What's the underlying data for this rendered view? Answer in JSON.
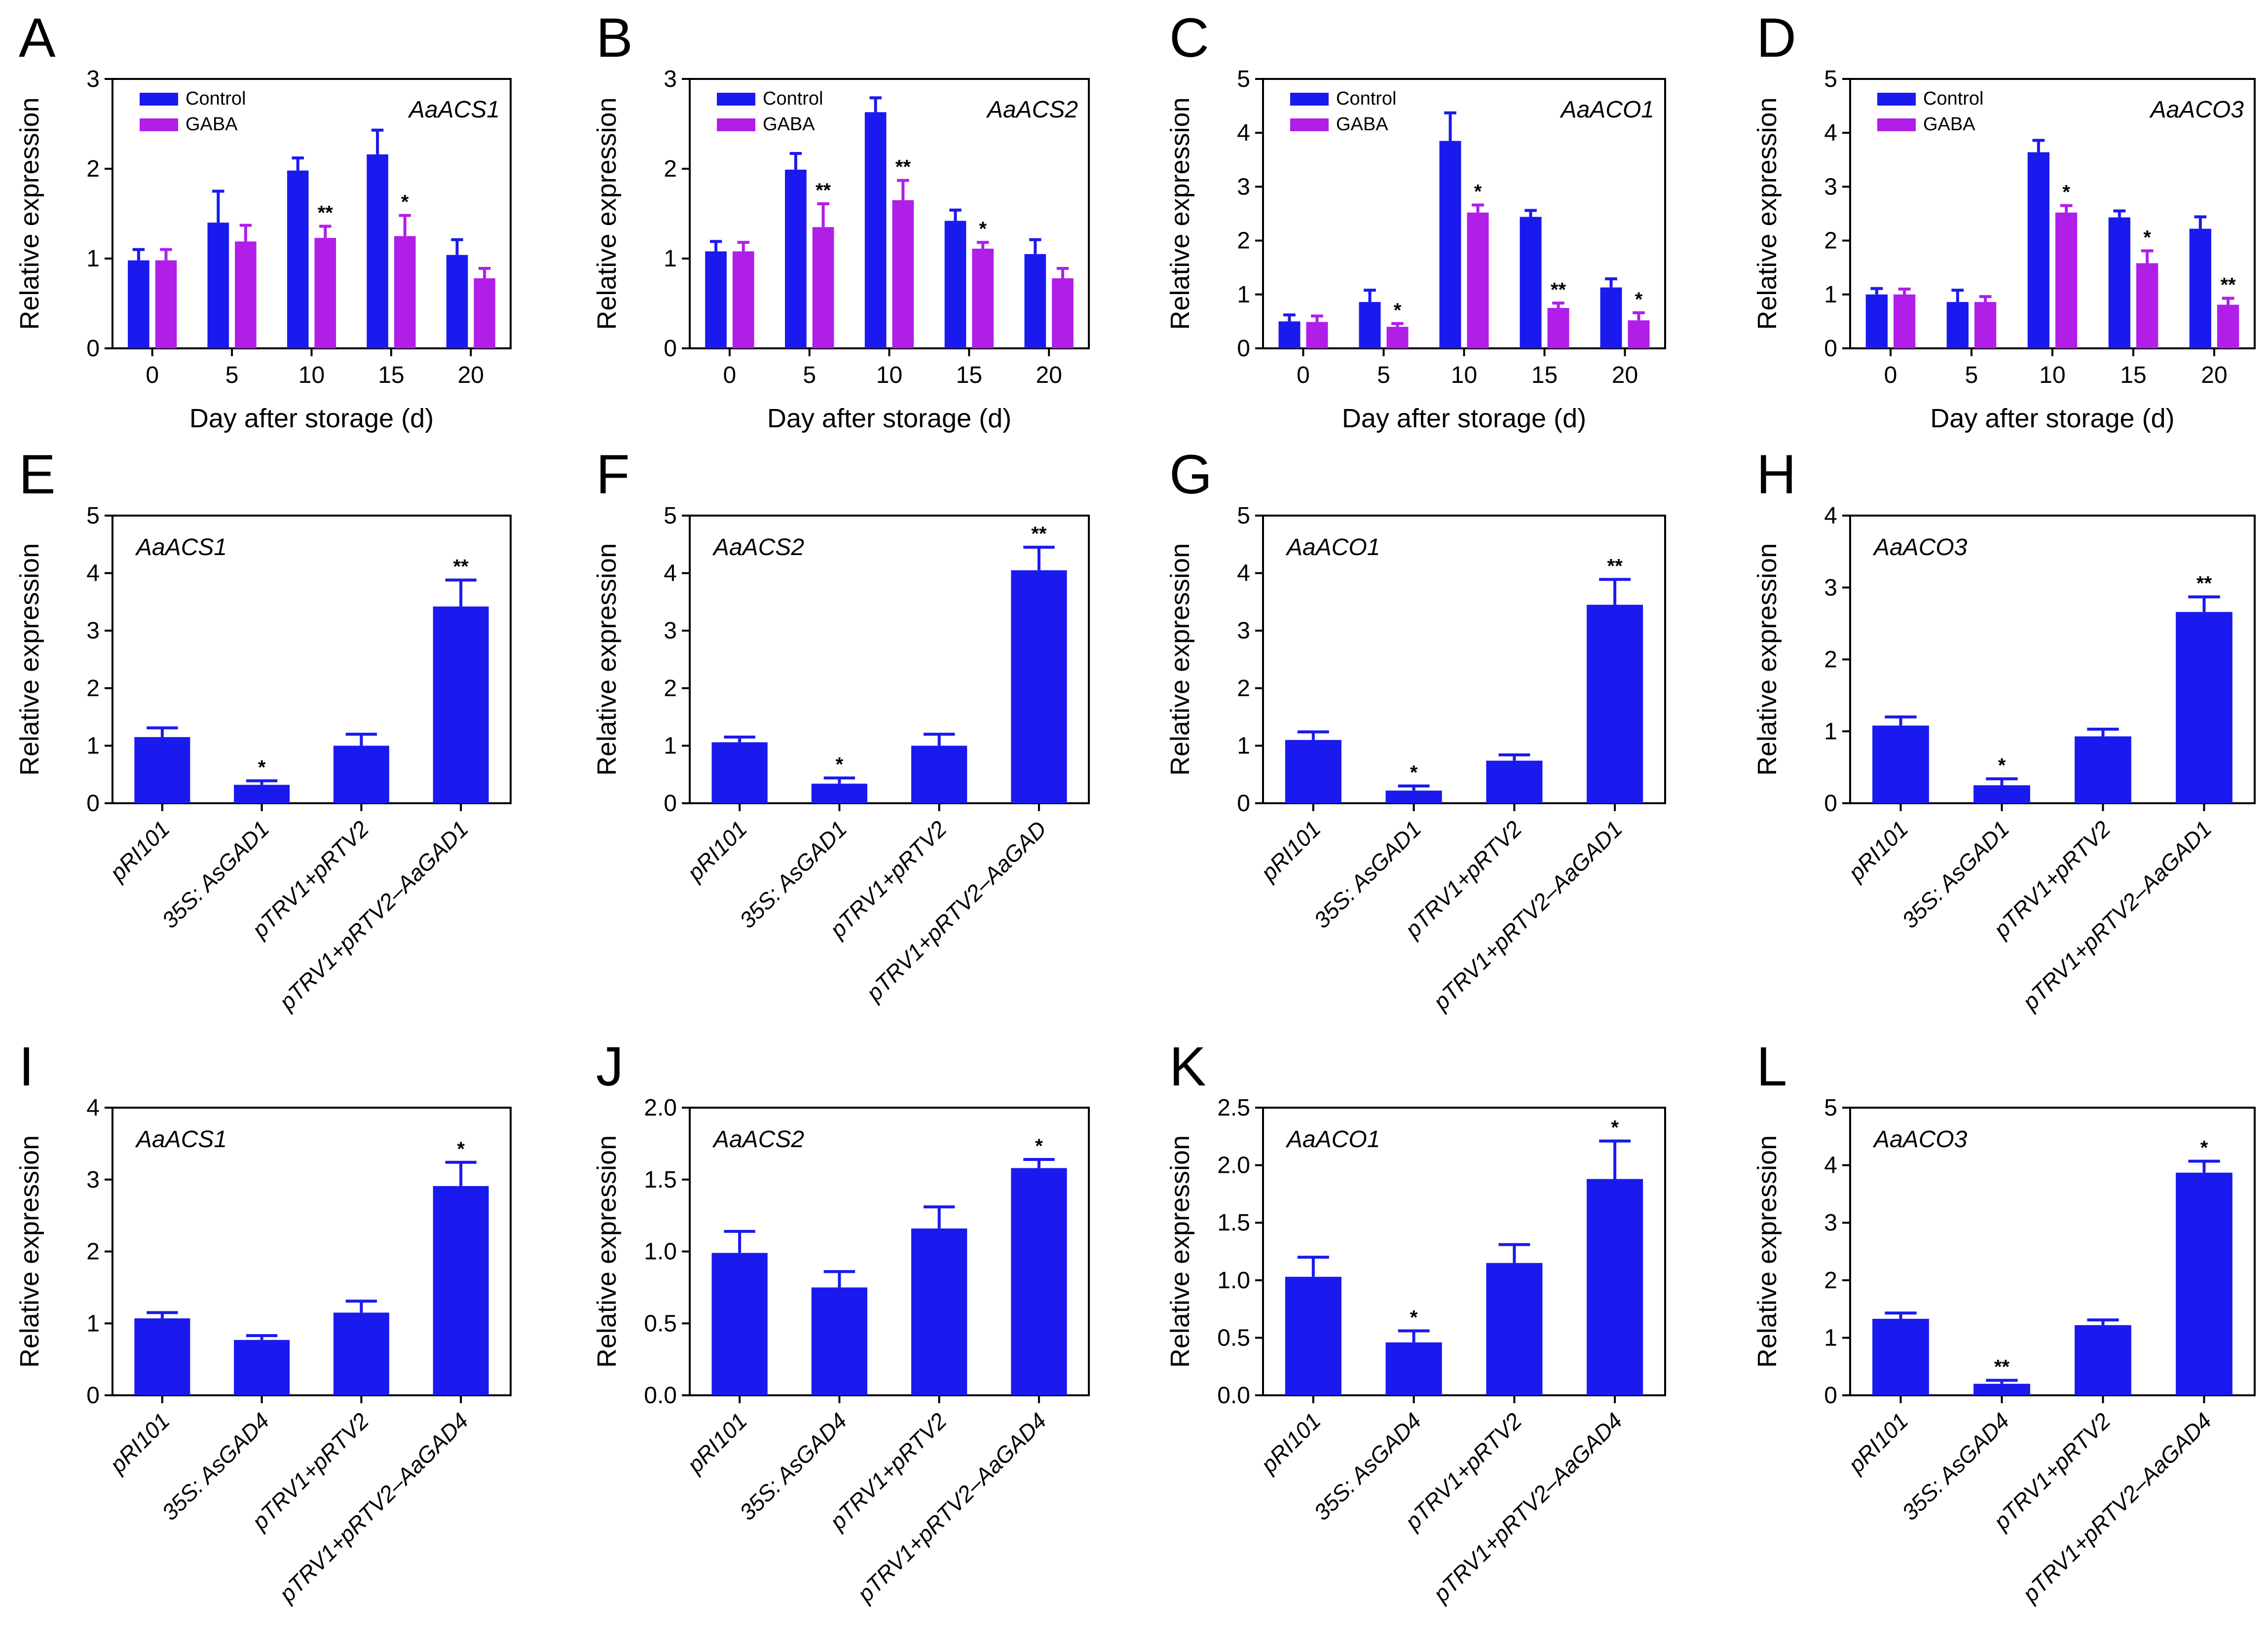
{
  "ylabel": "Relative expression",
  "colors": {
    "control": "#1a1aee",
    "gaba": "#b01ee8",
    "bar": "#1a1aee"
  },
  "chart_data": [
    {
      "panel": "A",
      "type": "bar",
      "gene": "AaACS1",
      "xlabel": "Day after storage (d)",
      "ylabel": "Relative expression",
      "categories": [
        "0",
        "5",
        "10",
        "15",
        "20"
      ],
      "ylim": [
        0,
        3
      ],
      "yticks": [
        "0",
        "1",
        "2",
        "3"
      ],
      "legend": true,
      "legend_position": "top-left",
      "series": [
        {
          "name": "Control",
          "values": [
            0.98,
            1.4,
            1.98,
            2.16,
            1.04
          ],
          "errors": [
            0.12,
            0.35,
            0.14,
            0.27,
            0.17
          ],
          "sig": [
            "",
            "",
            "",
            "",
            ""
          ]
        },
        {
          "name": "GABA",
          "values": [
            0.98,
            1.19,
            1.23,
            1.25,
            0.78
          ],
          "errors": [
            0.12,
            0.18,
            0.13,
            0.23,
            0.11
          ],
          "sig": [
            "",
            "",
            "**",
            "*",
            ""
          ]
        }
      ]
    },
    {
      "panel": "B",
      "type": "bar",
      "gene": "AaACS2",
      "xlabel": "Day after storage (d)",
      "ylabel": "Relative expression",
      "categories": [
        "0",
        "5",
        "10",
        "15",
        "20"
      ],
      "ylim": [
        0,
        3
      ],
      "yticks": [
        "0",
        "1",
        "2",
        "3"
      ],
      "legend": true,
      "legend_position": "top-left",
      "series": [
        {
          "name": "Control",
          "values": [
            1.08,
            1.99,
            2.63,
            1.42,
            1.05
          ],
          "errors": [
            0.11,
            0.18,
            0.16,
            0.12,
            0.16
          ],
          "sig": [
            "",
            "",
            "",
            "",
            ""
          ]
        },
        {
          "name": "GABA",
          "values": [
            1.08,
            1.35,
            1.65,
            1.11,
            0.78
          ],
          "errors": [
            0.1,
            0.26,
            0.22,
            0.07,
            0.11
          ],
          "sig": [
            "",
            "**",
            "**",
            "*",
            ""
          ]
        }
      ]
    },
    {
      "panel": "C",
      "type": "bar",
      "gene": "AaACO1",
      "xlabel": "Day after storage (d)",
      "ylabel": "Relative expression",
      "categories": [
        "0",
        "5",
        "10",
        "15",
        "20"
      ],
      "ylim": [
        0,
        5
      ],
      "yticks": [
        "0",
        "1",
        "2",
        "3",
        "4",
        "5"
      ],
      "legend": true,
      "legend_position": "top-left",
      "series": [
        {
          "name": "Control",
          "values": [
            0.5,
            0.86,
            3.85,
            2.44,
            1.13
          ],
          "errors": [
            0.12,
            0.22,
            0.52,
            0.12,
            0.16
          ],
          "sig": [
            "",
            "",
            "",
            "",
            ""
          ]
        },
        {
          "name": "GABA",
          "values": [
            0.49,
            0.4,
            2.52,
            0.75,
            0.52
          ],
          "errors": [
            0.11,
            0.06,
            0.14,
            0.09,
            0.14
          ],
          "sig": [
            "",
            "*",
            "*",
            "**",
            "*"
          ]
        }
      ]
    },
    {
      "panel": "D",
      "type": "bar",
      "gene": "AaACO3",
      "xlabel": "Day after storage (d)",
      "ylabel": "Relative expression",
      "categories": [
        "0",
        "5",
        "10",
        "15",
        "20"
      ],
      "ylim": [
        0,
        5
      ],
      "yticks": [
        "0",
        "1",
        "2",
        "3",
        "4",
        "5"
      ],
      "legend": true,
      "legend_position": "top-left",
      "series": [
        {
          "name": "Control",
          "values": [
            1.0,
            0.86,
            3.64,
            2.43,
            2.22
          ],
          "errors": [
            0.11,
            0.22,
            0.22,
            0.12,
            0.22
          ],
          "sig": [
            "",
            "",
            "",
            "",
            ""
          ]
        },
        {
          "name": "GABA",
          "values": [
            1.0,
            0.86,
            2.52,
            1.58,
            0.81
          ],
          "errors": [
            0.1,
            0.1,
            0.13,
            0.23,
            0.12
          ],
          "sig": [
            "",
            "",
            "*",
            "*",
            "**"
          ]
        }
      ]
    },
    {
      "panel": "E",
      "type": "bar",
      "gene": "AaACS1",
      "ylabel": "Relative expression",
      "categories": [
        "pRI101",
        "35S: AsGAD1",
        "pTRV1+pRTV2",
        "pTRV1+pRTV2–AaGAD1"
      ],
      "ylim": [
        0,
        5
      ],
      "yticks": [
        "0",
        "1",
        "2",
        "3",
        "4",
        "5"
      ],
      "legend": false,
      "series": [
        {
          "values": [
            1.15,
            0.32,
            1.0,
            3.42
          ],
          "errors": [
            0.16,
            0.07,
            0.2,
            0.46
          ],
          "sig": [
            "",
            "*",
            "",
            "**"
          ]
        }
      ]
    },
    {
      "panel": "F",
      "type": "bar",
      "gene": "AaACS2",
      "ylabel": "Relative expression",
      "categories": [
        "pRI101",
        "35S: AsGAD1",
        "pTRV1+pRTV2",
        "pTRV1+pRTV2–AaGAD"
      ],
      "ylim": [
        0,
        5
      ],
      "yticks": [
        "0",
        "1",
        "2",
        "3",
        "4",
        "5"
      ],
      "legend": false,
      "series": [
        {
          "values": [
            1.06,
            0.34,
            1.0,
            4.05
          ],
          "errors": [
            0.09,
            0.1,
            0.2,
            0.4
          ],
          "sig": [
            "",
            "*",
            "",
            "**"
          ]
        }
      ]
    },
    {
      "panel": "G",
      "type": "bar",
      "gene": "AaACO1",
      "ylabel": "Relative expression",
      "categories": [
        "pRI101",
        "35S: AsGAD1",
        "pTRV1+pRTV2",
        "pTRV1+pRTV2–AaGAD1"
      ],
      "ylim": [
        0,
        5
      ],
      "yticks": [
        "0",
        "1",
        "2",
        "3",
        "4",
        "5"
      ],
      "legend": false,
      "series": [
        {
          "values": [
            1.1,
            0.22,
            0.74,
            3.45
          ],
          "errors": [
            0.14,
            0.08,
            0.1,
            0.44
          ],
          "sig": [
            "",
            "*",
            "",
            "**"
          ]
        }
      ]
    },
    {
      "panel": "H",
      "type": "bar",
      "gene": "AaACO3",
      "ylabel": "Relative expression",
      "categories": [
        "pRI101",
        "35S: AsGAD1",
        "pTRV1+pRTV2",
        "pTRV1+pRTV2–AaGAD1"
      ],
      "ylim": [
        0,
        4
      ],
      "yticks": [
        "0",
        "1",
        "2",
        "3",
        "4"
      ],
      "legend": false,
      "series": [
        {
          "values": [
            1.08,
            0.25,
            0.93,
            2.66
          ],
          "errors": [
            0.12,
            0.09,
            0.1,
            0.21
          ],
          "sig": [
            "",
            "*",
            "",
            "**"
          ]
        }
      ]
    },
    {
      "panel": "I",
      "type": "bar",
      "gene": "AaACS1",
      "ylabel": "Relative expression",
      "categories": [
        "pRI101",
        "35S: AsGAD4",
        "pTRV1+pRTV2",
        "pTRV1+pRTV2–AaGAD4"
      ],
      "ylim": [
        0,
        4
      ],
      "yticks": [
        "0",
        "1",
        "2",
        "3",
        "4"
      ],
      "legend": false,
      "series": [
        {
          "values": [
            1.07,
            0.77,
            1.15,
            2.91
          ],
          "errors": [
            0.08,
            0.06,
            0.16,
            0.33
          ],
          "sig": [
            "",
            "",
            "",
            "*"
          ]
        }
      ]
    },
    {
      "panel": "J",
      "type": "bar",
      "gene": "AaACS2",
      "ylabel": "Relative expression",
      "categories": [
        "pRI101",
        "35S: AsGAD4",
        "pTRV1+pRTV2",
        "pTRV1+pRTV2–AaGAD4"
      ],
      "ylim": [
        0,
        2
      ],
      "yticks": [
        "0.0",
        "0.5",
        "1.0",
        "1.5",
        "2.0"
      ],
      "legend": false,
      "series": [
        {
          "values": [
            0.99,
            0.75,
            1.16,
            1.58
          ],
          "errors": [
            0.15,
            0.11,
            0.15,
            0.06
          ],
          "sig": [
            "",
            "",
            "",
            "*"
          ]
        }
      ]
    },
    {
      "panel": "K",
      "type": "bar",
      "gene": "AaACO1",
      "ylabel": "Relative expression",
      "categories": [
        "pRI101",
        "35S: AsGAD4",
        "pTRV1+pRTV2",
        "pTRV1+pRTV2–AaGAD4"
      ],
      "ylim": [
        0,
        2.5
      ],
      "yticks": [
        "0.0",
        "0.5",
        "1.0",
        "1.5",
        "2.0",
        "2.5"
      ],
      "legend": false,
      "series": [
        {
          "values": [
            1.03,
            0.46,
            1.15,
            1.88
          ],
          "errors": [
            0.17,
            0.1,
            0.16,
            0.33
          ],
          "sig": [
            "",
            "*",
            "",
            "*"
          ]
        }
      ]
    },
    {
      "panel": "L",
      "type": "bar",
      "gene": "AaACO3",
      "ylabel": "Relative expression",
      "categories": [
        "pRI101",
        "35S: AsGAD4",
        "pTRV1+pRTV2",
        "pTRV1+pRTV2–AaGAD4"
      ],
      "ylim": [
        0,
        5
      ],
      "yticks": [
        "0",
        "1",
        "2",
        "3",
        "4",
        "5"
      ],
      "legend": false,
      "series": [
        {
          "values": [
            1.33,
            0.2,
            1.22,
            3.87
          ],
          "errors": [
            0.1,
            0.06,
            0.09,
            0.2
          ],
          "sig": [
            "",
            "**",
            "",
            "*"
          ]
        }
      ]
    }
  ]
}
